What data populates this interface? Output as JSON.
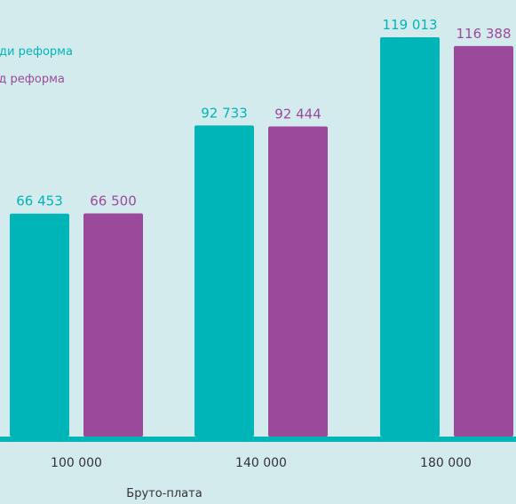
{
  "colors": {
    "background": "#d4ebee",
    "series_before": "#00b5b8",
    "series_after": "#9b4a9b",
    "axis": "#00b5b8",
    "text": "#333333"
  },
  "chart_data": {
    "type": "bar",
    "categories": [
      "100 000",
      "140 000",
      "180 000"
    ],
    "series": [
      {
        "name": "Преди реформа",
        "values": [
          66453,
          92733,
          119013
        ],
        "labels": [
          "66 453",
          "92 733",
          "119 013"
        ]
      },
      {
        "name": "След реформа",
        "values": [
          66500,
          92444,
          116388
        ],
        "labels": [
          "66 500",
          "92 444",
          "116 388"
        ]
      }
    ],
    "xlabel": "Бруто-плата",
    "ylabel": "",
    "ylim": [
      0,
      119013
    ],
    "legend_position": "top-left",
    "grid": false
  }
}
